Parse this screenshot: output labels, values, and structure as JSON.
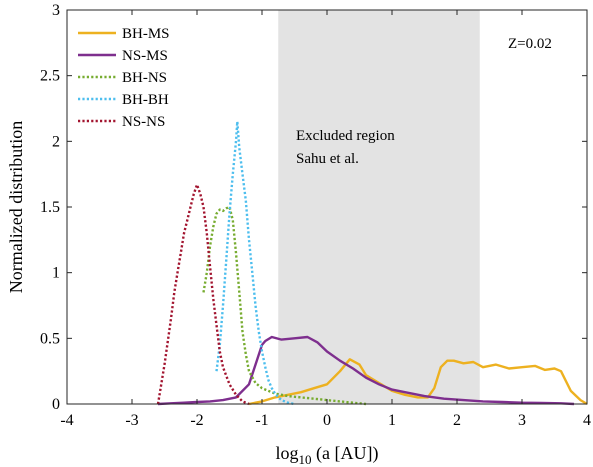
{
  "chart_data": {
    "type": "line",
    "xlabel": {
      "main": "log",
      "sub": "10",
      "rest": " (a [AU])"
    },
    "ylabel": "Normalized distribution",
    "xlim": [
      -4,
      4
    ],
    "ylim": [
      0,
      3
    ],
    "x_ticks": [
      -4,
      -3,
      -2,
      -1,
      0,
      1,
      2,
      3,
      4
    ],
    "y_ticks": [
      0,
      0.5,
      1,
      1.5,
      2,
      2.5,
      3
    ],
    "x_tick_labels": [
      "-4",
      "-3",
      "-2",
      "-1",
      "0",
      "1",
      "2",
      "3",
      "4"
    ],
    "y_tick_labels": [
      "0",
      "0.5",
      "1",
      "1.5",
      "2",
      "2.5",
      "3"
    ],
    "grid": false,
    "legend_position": "top-left",
    "excluded_region": {
      "x": [
        -0.75,
        2.35
      ],
      "color": "#e3e3e3",
      "lines": [
        "Excluded region",
        "Sahu et al."
      ]
    },
    "metallicity_label": "Z=0.02",
    "series": [
      {
        "name": "BH-MS",
        "color": "#EDB120",
        "style": "solid",
        "x": [
          -1.2,
          -1.0,
          -0.8,
          -0.6,
          -0.4,
          -0.2,
          0.0,
          0.2,
          0.35,
          0.5,
          0.6,
          0.8,
          1.0,
          1.2,
          1.4,
          1.55,
          1.65,
          1.75,
          1.85,
          1.95,
          2.1,
          2.25,
          2.4,
          2.6,
          2.8,
          3.0,
          3.2,
          3.35,
          3.5,
          3.6,
          3.75,
          3.9,
          4.0
        ],
        "y": [
          0.0,
          0.02,
          0.05,
          0.07,
          0.09,
          0.12,
          0.15,
          0.25,
          0.34,
          0.3,
          0.22,
          0.16,
          0.1,
          0.07,
          0.05,
          0.05,
          0.12,
          0.28,
          0.33,
          0.33,
          0.31,
          0.32,
          0.28,
          0.3,
          0.27,
          0.28,
          0.29,
          0.26,
          0.27,
          0.25,
          0.1,
          0.03,
          0.0
        ]
      },
      {
        "name": "NS-MS",
        "color": "#7E2F8E",
        "style": "solid",
        "x": [
          -2.6,
          -2.4,
          -2.2,
          -2.0,
          -1.8,
          -1.6,
          -1.4,
          -1.2,
          -1.1,
          -1.0,
          -0.95,
          -0.85,
          -0.7,
          -0.5,
          -0.3,
          -0.15,
          0.0,
          0.2,
          0.4,
          0.6,
          0.8,
          1.0,
          1.2,
          1.5,
          1.8,
          2.1,
          2.4,
          2.7,
          3.0,
          3.3,
          3.6,
          3.8
        ],
        "y": [
          0.0,
          0.005,
          0.01,
          0.015,
          0.02,
          0.03,
          0.05,
          0.15,
          0.3,
          0.45,
          0.48,
          0.51,
          0.49,
          0.5,
          0.51,
          0.47,
          0.4,
          0.33,
          0.27,
          0.2,
          0.15,
          0.11,
          0.09,
          0.06,
          0.04,
          0.03,
          0.02,
          0.015,
          0.01,
          0.008,
          0.005,
          0.0
        ]
      },
      {
        "name": "BH-NS",
        "color": "#77AC30",
        "style": "dotted",
        "x": [
          -1.9,
          -1.85,
          -1.8,
          -1.75,
          -1.7,
          -1.65,
          -1.6,
          -1.55,
          -1.5,
          -1.45,
          -1.4,
          -1.35,
          -1.3,
          -1.25,
          -1.2,
          -1.1,
          -1.0,
          -0.9,
          -0.8,
          -0.6,
          -0.4,
          -0.2,
          0.0,
          0.2,
          0.4,
          0.6
        ],
        "y": [
          0.85,
          1.0,
          1.2,
          1.35,
          1.45,
          1.48,
          1.47,
          1.49,
          1.5,
          1.4,
          1.15,
          0.85,
          0.55,
          0.38,
          0.25,
          0.16,
          0.12,
          0.1,
          0.08,
          0.06,
          0.05,
          0.04,
          0.03,
          0.02,
          0.01,
          0.0
        ]
      },
      {
        "name": "BH-BH",
        "color": "#4DBEEE",
        "style": "dotted",
        "x": [
          -1.7,
          -1.65,
          -1.6,
          -1.55,
          -1.5,
          -1.45,
          -1.4,
          -1.38,
          -1.35,
          -1.3,
          -1.25,
          -1.2,
          -1.15,
          -1.1,
          -1.05,
          -1.0,
          -0.95,
          -0.9,
          -0.85,
          -0.8,
          -0.75,
          -0.7,
          -0.6,
          -0.5
        ],
        "y": [
          0.25,
          0.45,
          0.75,
          1.1,
          1.45,
          1.75,
          2.0,
          2.15,
          1.95,
          1.75,
          1.55,
          1.25,
          1.0,
          0.75,
          0.55,
          0.4,
          0.28,
          0.18,
          0.12,
          0.08,
          0.05,
          0.03,
          0.01,
          0.0
        ]
      },
      {
        "name": "NS-NS",
        "color": "#A2142F",
        "style": "dotted",
        "x": [
          -2.6,
          -2.5,
          -2.4,
          -2.35,
          -2.3,
          -2.25,
          -2.2,
          -2.15,
          -2.1,
          -2.05,
          -2.0,
          -1.95,
          -1.9,
          -1.85,
          -1.8,
          -1.75,
          -1.7,
          -1.65,
          -1.6,
          -1.5,
          -1.4,
          -1.3,
          -1.2
        ],
        "y": [
          0.0,
          0.3,
          0.65,
          0.85,
          1.0,
          1.15,
          1.3,
          1.4,
          1.5,
          1.6,
          1.67,
          1.6,
          1.5,
          1.3,
          1.05,
          0.8,
          0.6,
          0.4,
          0.28,
          0.15,
          0.07,
          0.02,
          0.0
        ]
      }
    ]
  }
}
